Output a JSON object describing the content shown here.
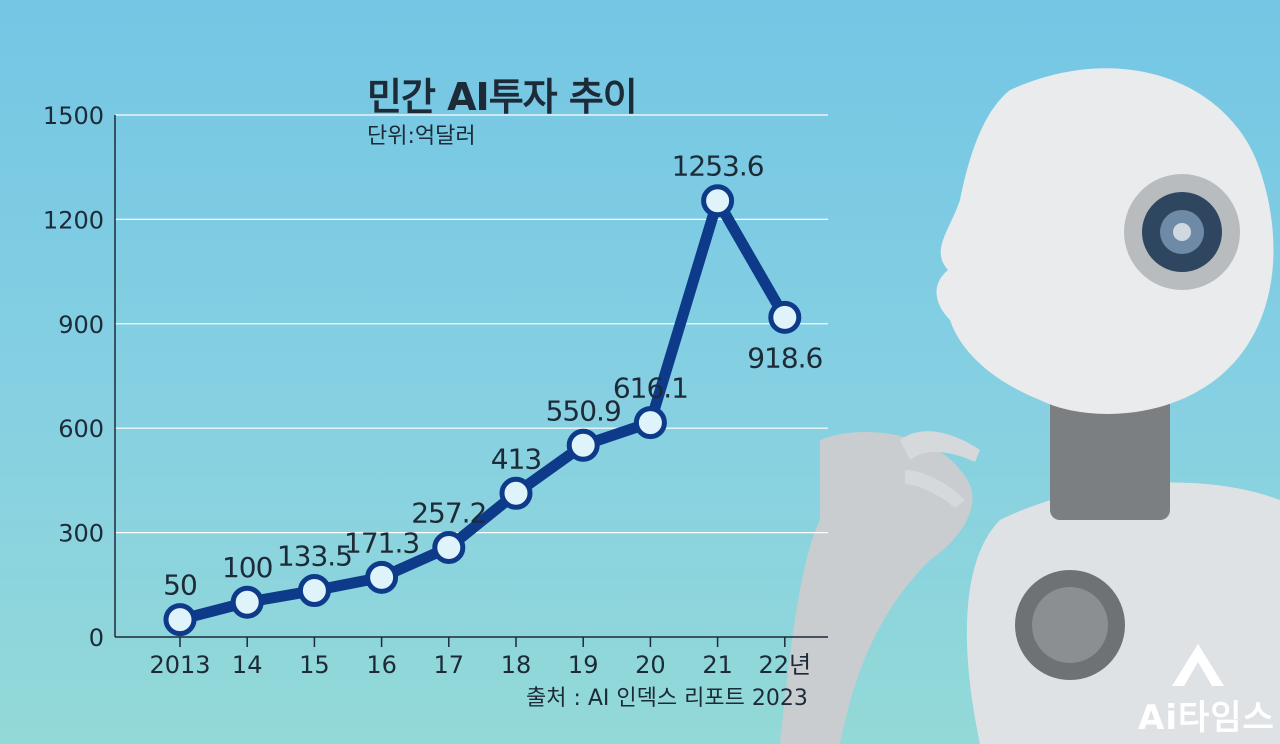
{
  "title": "민간 AI투자 추이",
  "unit": "단위:억달러",
  "source": "출처 : AI 인덱스 리포트 2023",
  "brand": "Ai타임스",
  "chart_data": {
    "type": "line",
    "title": "민간 AI투자 추이",
    "categories": [
      "2013",
      "14",
      "15",
      "16",
      "17",
      "18",
      "19",
      "20",
      "21",
      "22년"
    ],
    "values": [
      50,
      100,
      133.5,
      171.3,
      257.2,
      413,
      550.9,
      616.1,
      1253.6,
      918.6
    ],
    "data_labels": [
      "50",
      "100",
      "133.5",
      "171.3",
      "257.2",
      "413",
      "550.9",
      "616.1",
      "1253.6",
      "918.6"
    ],
    "yticks": [
      0,
      300,
      600,
      900,
      1200,
      1500
    ],
    "ylim": [
      0,
      1500
    ],
    "grid": true,
    "colors": {
      "line": "#0e3a8a",
      "marker_fill": "#dff3fb",
      "grid": "#ffffff",
      "text": "#1d2a38"
    }
  }
}
